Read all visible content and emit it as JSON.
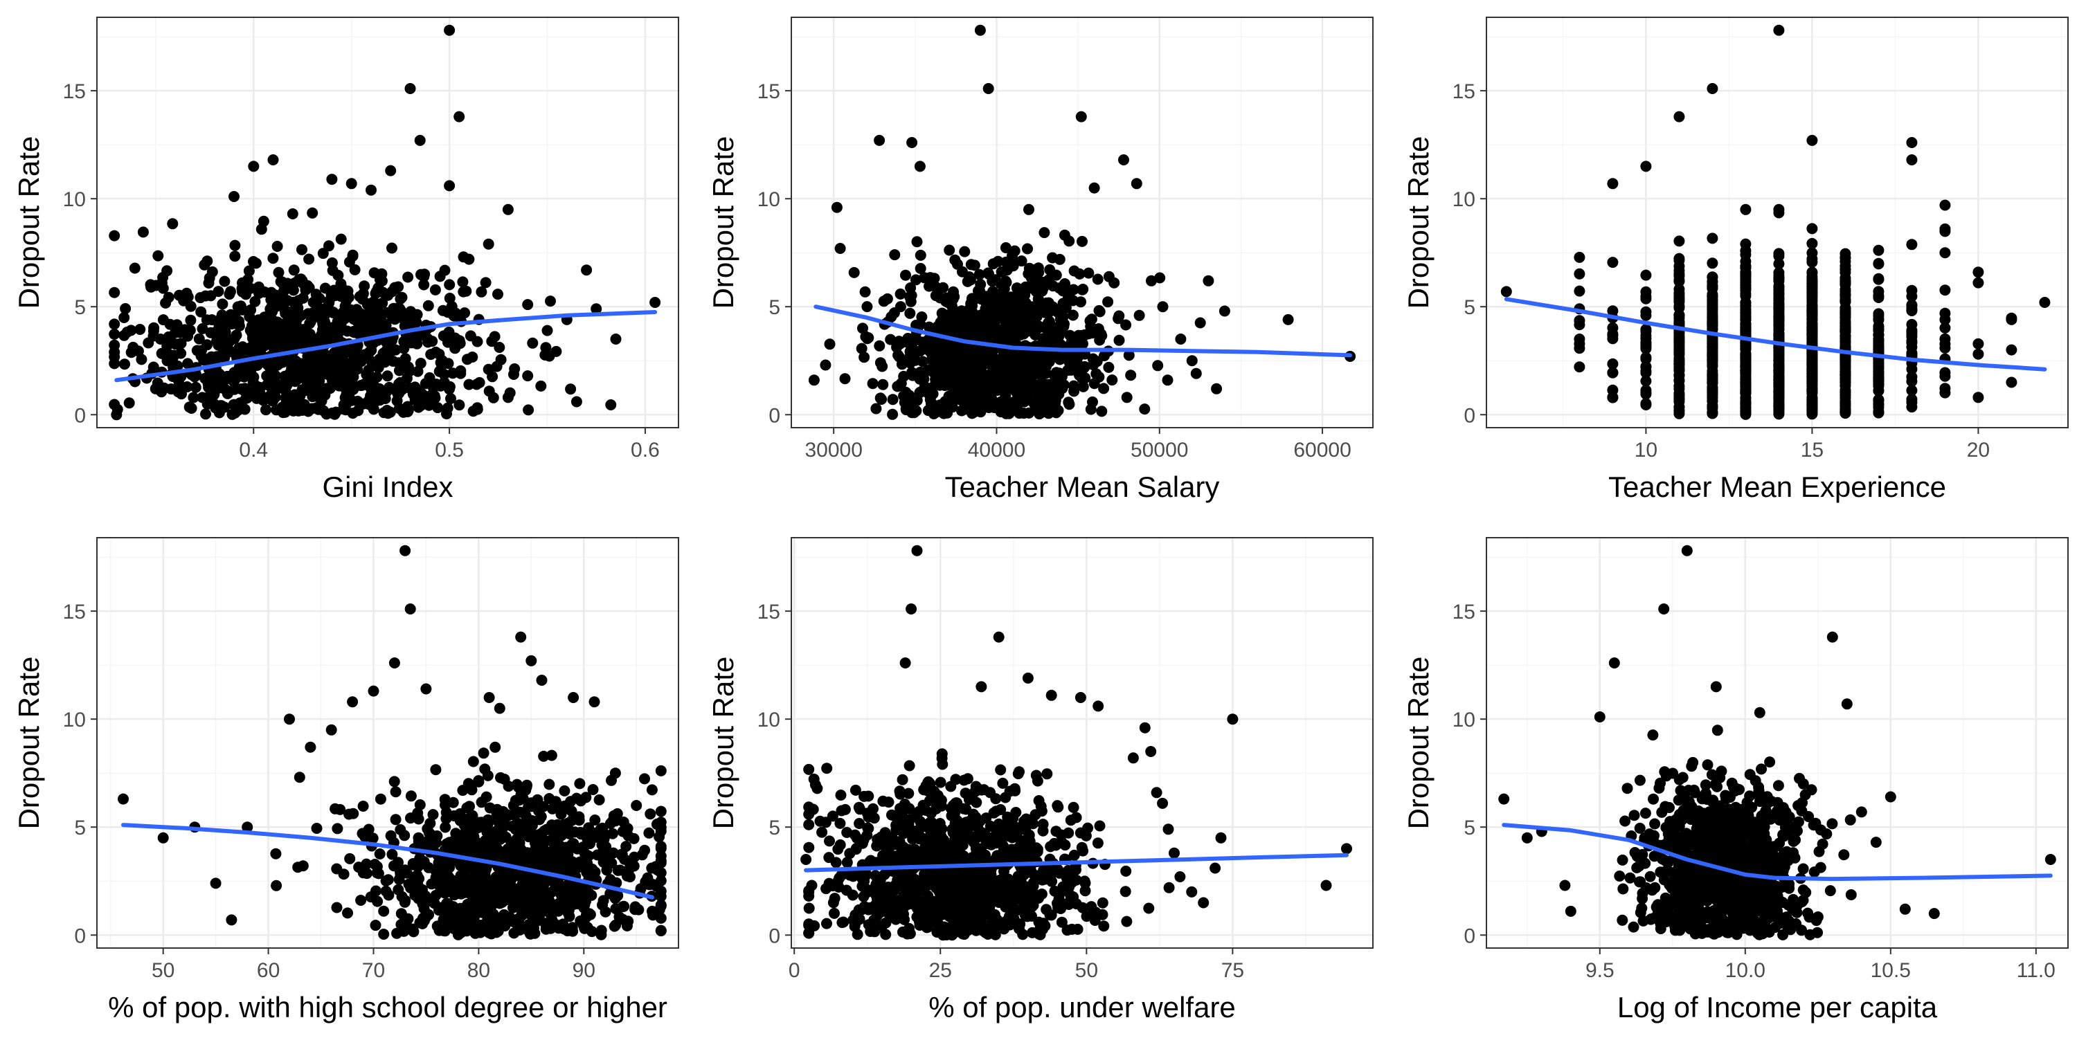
{
  "colors": {
    "points": "#000000",
    "smooth_line": "#3366ff",
    "grid_major": "#ebebeb",
    "grid_minor": "#f5f5f5",
    "panel_border": "#333333",
    "tick_text": "#4d4d4d"
  },
  "chart_data": [
    {
      "type": "scatter",
      "xlabel": "Gini Index",
      "ylabel": "Dropout Rate",
      "xlim": [
        0.32,
        0.617
      ],
      "ylim": [
        -0.6,
        18.4
      ],
      "xticks": [
        0.4,
        0.5,
        0.6
      ],
      "xtick_labels": [
        "0.4",
        "0.5",
        "0.6"
      ],
      "yticks": [
        0,
        5,
        10,
        15
      ],
      "ytick_labels": [
        "0",
        "5",
        "10",
        "15"
      ],
      "grid": true,
      "cloud": {
        "center": [
          0.43,
          3.0
        ],
        "spread": [
          0.045,
          2.0
        ],
        "n": 1000
      },
      "points": [
        [
          0.33,
          0
        ],
        [
          0.35,
          1.2
        ],
        [
          0.36,
          3.8
        ],
        [
          0.39,
          10.1
        ],
        [
          0.4,
          11.5
        ],
        [
          0.41,
          11.8
        ],
        [
          0.42,
          9.3
        ],
        [
          0.44,
          10.9
        ],
        [
          0.45,
          10.7
        ],
        [
          0.46,
          10.4
        ],
        [
          0.47,
          11.3
        ],
        [
          0.48,
          15.1
        ],
        [
          0.485,
          12.7
        ],
        [
          0.5,
          17.8
        ],
        [
          0.505,
          13.8
        ],
        [
          0.5,
          10.6
        ],
        [
          0.51,
          7.2
        ],
        [
          0.52,
          7.9
        ],
        [
          0.53,
          9.5
        ],
        [
          0.54,
          5.1
        ],
        [
          0.55,
          3.9
        ],
        [
          0.56,
          4.4
        ],
        [
          0.57,
          6.7
        ],
        [
          0.575,
          4.9
        ],
        [
          0.585,
          3.5
        ],
        [
          0.605,
          5.2
        ],
        [
          0.52,
          2.1
        ],
        [
          0.51,
          1.4
        ],
        [
          0.53,
          0.8
        ],
        [
          0.54,
          1.8
        ]
      ],
      "smooth_line": {
        "x": [
          0.33,
          0.37,
          0.4,
          0.44,
          0.48,
          0.5,
          0.53,
          0.56,
          0.605
        ],
        "y": [
          1.6,
          2.1,
          2.6,
          3.2,
          3.9,
          4.2,
          4.4,
          4.6,
          4.75
        ]
      }
    },
    {
      "type": "scatter",
      "xlabel": "Teacher Mean Salary",
      "ylabel": "Dropout Rate",
      "xlim": [
        27400,
        63100
      ],
      "ylim": [
        -0.6,
        18.4
      ],
      "xticks": [
        30000,
        40000,
        50000,
        60000
      ],
      "xtick_labels": [
        "30000",
        "40000",
        "50000",
        "60000"
      ],
      "yticks": [
        0,
        5,
        10,
        15
      ],
      "ytick_labels": [
        "0",
        "5",
        "10",
        "15"
      ],
      "grid": true,
      "cloud": {
        "center": [
          40000,
          3.0
        ],
        "spread": [
          3300,
          2.0
        ],
        "n": 1000
      },
      "points": [
        [
          28800,
          1.6
        ],
        [
          29500,
          2.3
        ],
        [
          30200,
          9.6
        ],
        [
          30400,
          7.7
        ],
        [
          32800,
          12.7
        ],
        [
          34800,
          12.6
        ],
        [
          35300,
          11.5
        ],
        [
          39000,
          17.8
        ],
        [
          39500,
          15.1
        ],
        [
          45200,
          13.8
        ],
        [
          47800,
          11.8
        ],
        [
          48600,
          10.7
        ],
        [
          46000,
          10.5
        ],
        [
          49500,
          6.2
        ],
        [
          50200,
          5.0
        ],
        [
          51300,
          3.5
        ],
        [
          53000,
          6.2
        ],
        [
          54000,
          4.8
        ],
        [
          57900,
          4.4
        ],
        [
          61700,
          2.7
        ],
        [
          52000,
          2.5
        ],
        [
          50500,
          1.6
        ],
        [
          48000,
          0.8
        ],
        [
          53500,
          1.2
        ]
      ],
      "smooth_line": {
        "x": [
          28900,
          32000,
          35000,
          38000,
          41000,
          44000,
          48000,
          52000,
          56000,
          61700
        ],
        "y": [
          5.0,
          4.5,
          3.9,
          3.4,
          3.1,
          3.0,
          3.0,
          2.95,
          2.9,
          2.75
        ]
      }
    },
    {
      "type": "scatter",
      "xlabel": "Teacher Mean Experience",
      "ylabel": "Dropout Rate",
      "xlim": [
        5.2,
        22.7
      ],
      "ylim": [
        -0.6,
        18.4
      ],
      "xticks": [
        10,
        15,
        20
      ],
      "xtick_labels": [
        "10",
        "15",
        "20"
      ],
      "yticks": [
        0,
        5,
        10,
        15
      ],
      "ytick_labels": [
        "0",
        "5",
        "10",
        "15"
      ],
      "grid": true,
      "integer_x": true,
      "cloud": {
        "center": [
          14.0,
          3.0
        ],
        "spread": [
          2.1,
          2.0
        ],
        "n": 1100
      },
      "points": [
        [
          5.8,
          5.7
        ],
        [
          8.0,
          4.9
        ],
        [
          8.0,
          3.5
        ],
        [
          9.0,
          10.7
        ],
        [
          10.0,
          11.5
        ],
        [
          11.0,
          13.8
        ],
        [
          12.0,
          15.1
        ],
        [
          14.0,
          17.8
        ],
        [
          15.0,
          12.7
        ],
        [
          18.0,
          12.6
        ],
        [
          18.0,
          11.8
        ],
        [
          19.0,
          9.7
        ],
        [
          20.0,
          6.6
        ],
        [
          21.0,
          4.4
        ],
        [
          21.0,
          3.0
        ],
        [
          22.0,
          5.2
        ],
        [
          20.0,
          0.8
        ],
        [
          21.0,
          1.5
        ],
        [
          19.0,
          8.6
        ],
        [
          19.0,
          7.5
        ]
      ],
      "smooth_line": {
        "x": [
          5.8,
          8,
          10,
          12,
          14,
          16,
          18,
          20,
          22
        ],
        "y": [
          5.35,
          4.8,
          4.25,
          3.75,
          3.3,
          2.9,
          2.55,
          2.3,
          2.1
        ]
      }
    },
    {
      "type": "scatter",
      "xlabel": "% of pop. with high school degree or higher",
      "ylabel": "Dropout Rate",
      "xlim": [
        43.7,
        99.0
      ],
      "ylim": [
        -0.6,
        18.4
      ],
      "xticks": [
        50,
        60,
        70,
        80,
        90
      ],
      "xtick_labels": [
        "50",
        "60",
        "70",
        "80",
        "90"
      ],
      "yticks": [
        0,
        5,
        10,
        15
      ],
      "ytick_labels": [
        "0",
        "5",
        "10",
        "15"
      ],
      "grid": true,
      "cloud": {
        "center": [
          83,
          3.0
        ],
        "spread": [
          7.0,
          2.0
        ],
        "n": 1000
      },
      "points": [
        [
          46.2,
          6.3
        ],
        [
          50,
          4.5
        ],
        [
          53,
          5.0
        ],
        [
          55,
          2.4
        ],
        [
          56.5,
          0.7
        ],
        [
          58,
          5.0
        ],
        [
          62,
          10.0
        ],
        [
          64,
          8.7
        ],
        [
          66,
          9.5
        ],
        [
          68,
          10.8
        ],
        [
          70,
          11.3
        ],
        [
          72,
          12.6
        ],
        [
          73,
          17.8
        ],
        [
          73.5,
          15.1
        ],
        [
          75,
          11.4
        ],
        [
          81,
          11.0
        ],
        [
          82,
          10.5
        ],
        [
          84,
          13.8
        ],
        [
          85,
          12.7
        ],
        [
          86,
          11.8
        ],
        [
          89,
          11.0
        ],
        [
          91,
          10.8
        ],
        [
          93,
          7.5
        ],
        [
          95,
          6.0
        ],
        [
          96.5,
          1.1
        ]
      ],
      "smooth_line": {
        "x": [
          46.2,
          52,
          58,
          64,
          70,
          76,
          82,
          88,
          93,
          96.5
        ],
        "y": [
          5.1,
          4.95,
          4.75,
          4.5,
          4.2,
          3.8,
          3.3,
          2.7,
          2.15,
          1.75
        ]
      }
    },
    {
      "type": "scatter",
      "xlabel": "% of pop. under welfare",
      "ylabel": "Dropout Rate",
      "xlim": [
        -0.5,
        99.0
      ],
      "ylim": [
        -0.6,
        18.4
      ],
      "xticks": [
        0,
        25,
        50,
        75
      ],
      "xtick_labels": [
        "0",
        "25",
        "50",
        "75"
      ],
      "yticks": [
        0,
        5,
        10,
        15
      ],
      "ytick_labels": [
        "0",
        "5",
        "10",
        "15"
      ],
      "grid": true,
      "cloud": {
        "center": [
          27,
          3.0
        ],
        "spread": [
          11.0,
          2.0
        ],
        "n": 1000
      },
      "points": [
        [
          2,
          3.5
        ],
        [
          3,
          2.3
        ],
        [
          19,
          12.6
        ],
        [
          20,
          15.1
        ],
        [
          21,
          17.8
        ],
        [
          32,
          11.5
        ],
        [
          35,
          13.8
        ],
        [
          40,
          11.9
        ],
        [
          44,
          11.1
        ],
        [
          49,
          11.0
        ],
        [
          52,
          10.6
        ],
        [
          58,
          8.2
        ],
        [
          60,
          9.6
        ],
        [
          61,
          8.5
        ],
        [
          62,
          6.6
        ],
        [
          63,
          6.1
        ],
        [
          64,
          4.9
        ],
        [
          65,
          3.8
        ],
        [
          66,
          2.7
        ],
        [
          68,
          2.0
        ],
        [
          70,
          1.5
        ],
        [
          72,
          3.1
        ],
        [
          73,
          4.5
        ],
        [
          75,
          10.0
        ],
        [
          91,
          2.3
        ],
        [
          94.5,
          4.0
        ]
      ],
      "smooth_line": {
        "x": [
          2,
          20,
          40,
          60,
          80,
          94.5
        ],
        "y": [
          3.0,
          3.15,
          3.3,
          3.45,
          3.6,
          3.7
        ]
      }
    },
    {
      "type": "scatter",
      "xlabel": "Log of Income per capita",
      "ylabel": "Dropout Rate",
      "xlim": [
        9.11,
        11.11
      ],
      "ylim": [
        -0.6,
        18.4
      ],
      "xticks": [
        9.5,
        10.0,
        10.5,
        11.0
      ],
      "xtick_labels": [
        "9.5",
        "10.0",
        "10.5",
        "11.0"
      ],
      "yticks": [
        0,
        5,
        10,
        15
      ],
      "ytick_labels": [
        "0",
        "5",
        "10",
        "15"
      ],
      "grid": true,
      "cloud": {
        "center": [
          9.92,
          3.0
        ],
        "spread": [
          0.14,
          2.0
        ],
        "n": 1000
      },
      "points": [
        [
          9.17,
          6.3
        ],
        [
          9.25,
          4.5
        ],
        [
          9.3,
          4.8
        ],
        [
          9.38,
          2.3
        ],
        [
          9.4,
          1.1
        ],
        [
          9.5,
          10.1
        ],
        [
          9.55,
          12.6
        ],
        [
          9.72,
          15.1
        ],
        [
          9.8,
          17.8
        ],
        [
          9.9,
          11.5
        ],
        [
          10.05,
          10.3
        ],
        [
          10.3,
          13.8
        ],
        [
          10.35,
          10.7
        ],
        [
          10.4,
          5.7
        ],
        [
          10.45,
          4.3
        ],
        [
          10.5,
          6.4
        ],
        [
          10.55,
          1.2
        ],
        [
          10.65,
          1.0
        ],
        [
          11.05,
          3.5
        ],
        [
          10.2,
          7.0
        ]
      ],
      "smooth_line": {
        "x": [
          9.17,
          9.4,
          9.6,
          9.8,
          10.0,
          10.1,
          10.3,
          10.6,
          11.05
        ],
        "y": [
          5.1,
          4.85,
          4.4,
          3.5,
          2.8,
          2.65,
          2.6,
          2.65,
          2.75
        ]
      }
    }
  ]
}
